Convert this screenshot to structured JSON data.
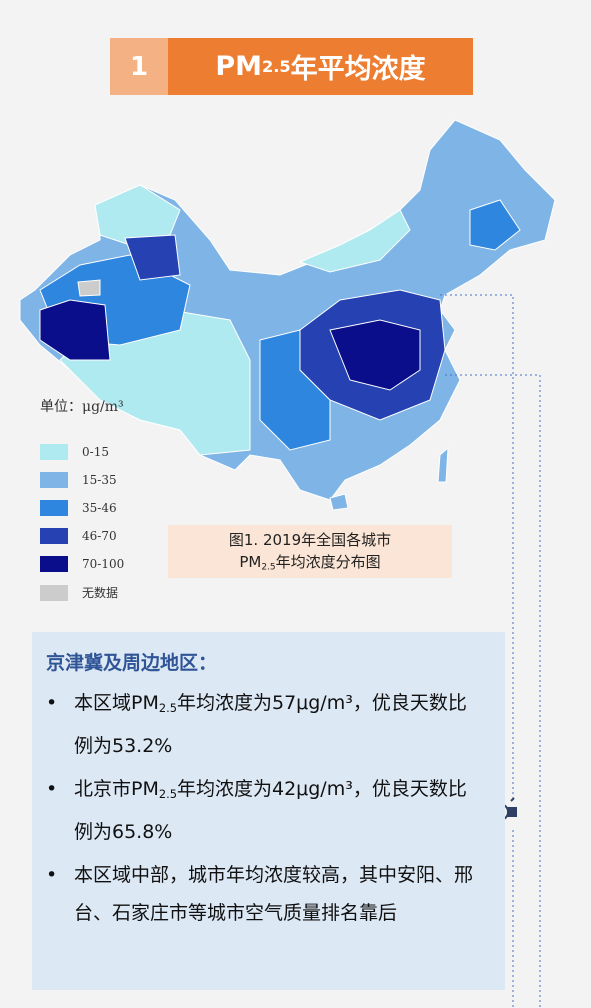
{
  "header": {
    "number": "1",
    "title": {
      "pre": "PM",
      "sub": "2.5",
      "post": "年平均浓度"
    }
  },
  "legend": {
    "unit": "单位：μg/m³",
    "items": [
      {
        "label": "0-15",
        "color": "#aeeaf0"
      },
      {
        "label": "15-35",
        "color": "#7eb4e6"
      },
      {
        "label": "35-46",
        "color": "#2e86de"
      },
      {
        "label": "46-70",
        "color": "#2541b2"
      },
      {
        "label": "70-100",
        "color": "#0b0e8a"
      },
      {
        "label": "无数据",
        "color": "#cccccc"
      }
    ]
  },
  "caption": {
    "line1": "图1. 2019年全国各城市",
    "pre": "PM",
    "sub": "2.5",
    "post": "年均浓度分布图"
  },
  "info": {
    "heading": "京津冀及周边地区：",
    "bullets": [
      {
        "pre": "本区域PM",
        "sub": "2.5",
        "post": "年均浓度为57μg/m³，优良天数比例为53.2%"
      },
      {
        "pre": "北京市PM",
        "sub": "2.5",
        "post": "年均浓度为42μg/m³，优良天数比例为65.8%"
      },
      {
        "pre": "本区域中部，城市年均浓度较高，其中安阳、邢台、石家庄市等城市空气质量排名靠后"
      }
    ]
  }
}
